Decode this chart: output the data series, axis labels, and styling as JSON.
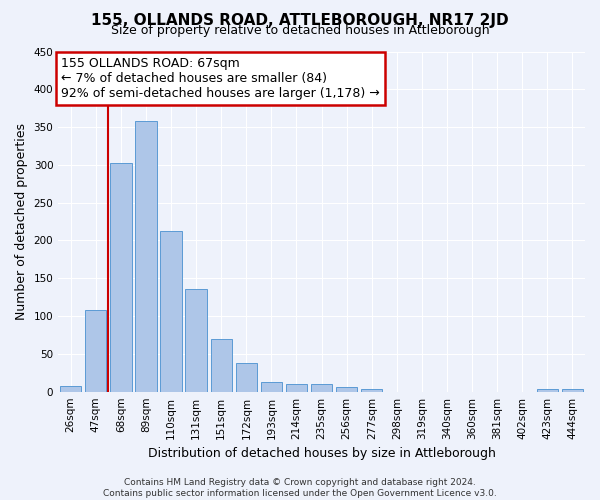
{
  "title": "155, OLLANDS ROAD, ATTLEBOROUGH, NR17 2JD",
  "subtitle": "Size of property relative to detached houses in Attleborough",
  "xlabel": "Distribution of detached houses by size in Attleborough",
  "ylabel": "Number of detached properties",
  "footer_line1": "Contains HM Land Registry data © Crown copyright and database right 2024.",
  "footer_line2": "Contains public sector information licensed under the Open Government Licence v3.0.",
  "categories": [
    "26sqm",
    "47sqm",
    "68sqm",
    "89sqm",
    "110sqm",
    "131sqm",
    "151sqm",
    "172sqm",
    "193sqm",
    "214sqm",
    "235sqm",
    "256sqm",
    "277sqm",
    "298sqm",
    "319sqm",
    "340sqm",
    "360sqm",
    "381sqm",
    "402sqm",
    "423sqm",
    "444sqm"
  ],
  "bar_values": [
    8,
    108,
    302,
    358,
    213,
    136,
    70,
    38,
    13,
    10,
    10,
    6,
    4,
    0,
    0,
    0,
    0,
    0,
    0,
    4,
    4
  ],
  "bar_color": "#aec6e8",
  "bar_edgecolor": "#5b9bd5",
  "background_color": "#eef2fb",
  "grid_color": "#ffffff",
  "annotation_line1": "155 OLLANDS ROAD: 67sqm",
  "annotation_line2": "← 7% of detached houses are smaller (84)",
  "annotation_line3": "92% of semi-detached houses are larger (1,178) →",
  "annotation_box_facecolor": "#ffffff",
  "annotation_box_edgecolor": "#cc0000",
  "vline_color": "#cc0000",
  "vline_x_index": 1.5,
  "ylim": [
    0,
    450
  ],
  "yticks": [
    0,
    50,
    100,
    150,
    200,
    250,
    300,
    350,
    400,
    450
  ],
  "title_fontsize": 11,
  "subtitle_fontsize": 9,
  "xlabel_fontsize": 9,
  "ylabel_fontsize": 9,
  "tick_fontsize": 7.5,
  "annotation_fontsize": 9,
  "footer_fontsize": 6.5
}
